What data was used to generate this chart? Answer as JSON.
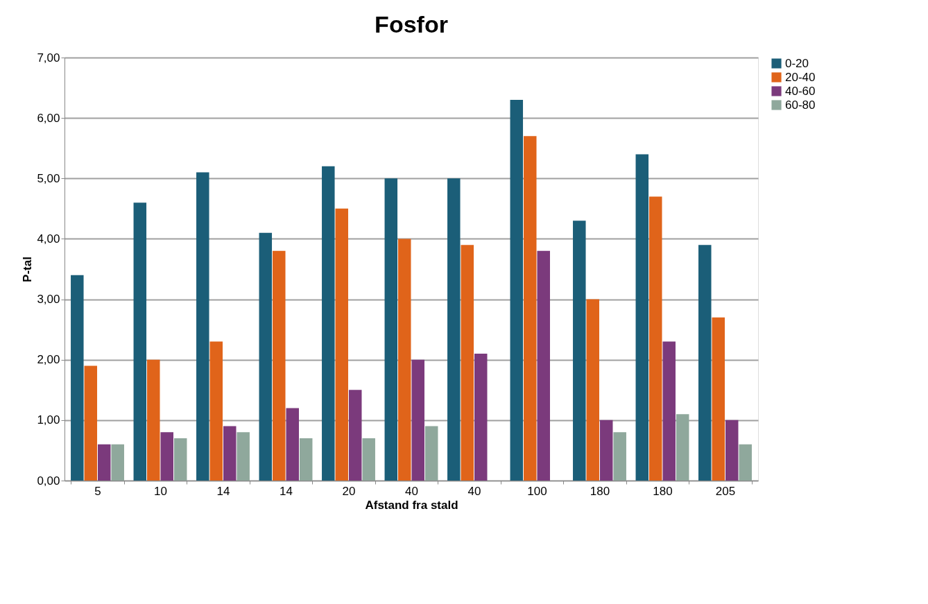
{
  "chart_data": {
    "type": "bar",
    "title": "Fosfor",
    "xlabel": "Afstand fra stald",
    "ylabel": "P-tal",
    "categories": [
      "5",
      "10",
      "14",
      "14",
      "20",
      "40",
      "40",
      "100",
      "180",
      "180",
      "205"
    ],
    "series": [
      {
        "name": "0-20",
        "color": "#1b5e78",
        "values": [
          3.4,
          4.6,
          5.1,
          4.1,
          5.2,
          5.0,
          5.0,
          6.3,
          4.3,
          5.4,
          3.9
        ]
      },
      {
        "name": "20-40",
        "color": "#e0641a",
        "values": [
          1.9,
          2.0,
          2.3,
          3.8,
          4.5,
          4.0,
          3.9,
          5.7,
          3.0,
          4.7,
          2.7
        ]
      },
      {
        "name": "40-60",
        "color": "#7b3a7c",
        "values": [
          0.6,
          0.8,
          0.9,
          1.2,
          1.5,
          2.0,
          2.1,
          3.8,
          1.0,
          2.3,
          1.0
        ]
      },
      {
        "name": "60-80",
        "color": "#8fa89c",
        "values": [
          0.6,
          0.7,
          0.8,
          0.7,
          0.7,
          0.9,
          0,
          0,
          0.8,
          1.1,
          0.6
        ]
      }
    ],
    "ylim": [
      0,
      7
    ],
    "yticks": [
      {
        "value": 0,
        "label": "0,00"
      },
      {
        "value": 1,
        "label": "1,00"
      },
      {
        "value": 2,
        "label": "2,00"
      },
      {
        "value": 3,
        "label": "3,00"
      },
      {
        "value": 4,
        "label": "4,00"
      },
      {
        "value": 5,
        "label": "5,00"
      },
      {
        "value": 6,
        "label": "6,00"
      },
      {
        "value": 7,
        "label": "7,00"
      }
    ],
    "grid": "y",
    "legend": "right"
  }
}
